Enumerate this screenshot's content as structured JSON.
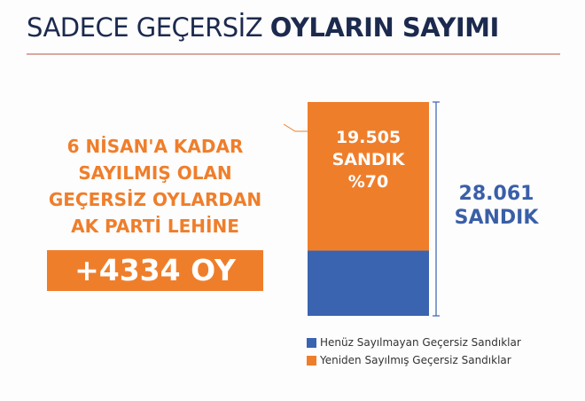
{
  "title": {
    "light": "SADECE GEÇERSİZ",
    "bold": "OYLARIN SAYIMI"
  },
  "left_text": [
    "6 NİSAN'A KADAR",
    "SAYILMIŞ OLAN",
    "GEÇERSİZ OYLARDAN",
    "AK PARTİ LEHİNE"
  ],
  "vote_gain": "+4334 OY",
  "total_label": [
    "28.061",
    "SANDIK"
  ],
  "bar_label": [
    "19.505",
    "SANDIK",
    "%70"
  ],
  "colors": {
    "orange": "#ef7e2b",
    "blue": "#3a63b0",
    "navy": "#1c2a4e"
  },
  "chart_data": {
    "type": "bar",
    "stacked": true,
    "categories": [
      ""
    ],
    "series": [
      {
        "name": "Henüz Sayılmayan Geçersiz Sandıklar",
        "values": [
          8556
        ],
        "color": "#3a63b0"
      },
      {
        "name": "Yeniden Sayılmış Geçersiz Sandıklar",
        "values": [
          19505
        ],
        "color": "#ef7e2b"
      }
    ],
    "total": 28061,
    "legend": "bottom-right"
  }
}
